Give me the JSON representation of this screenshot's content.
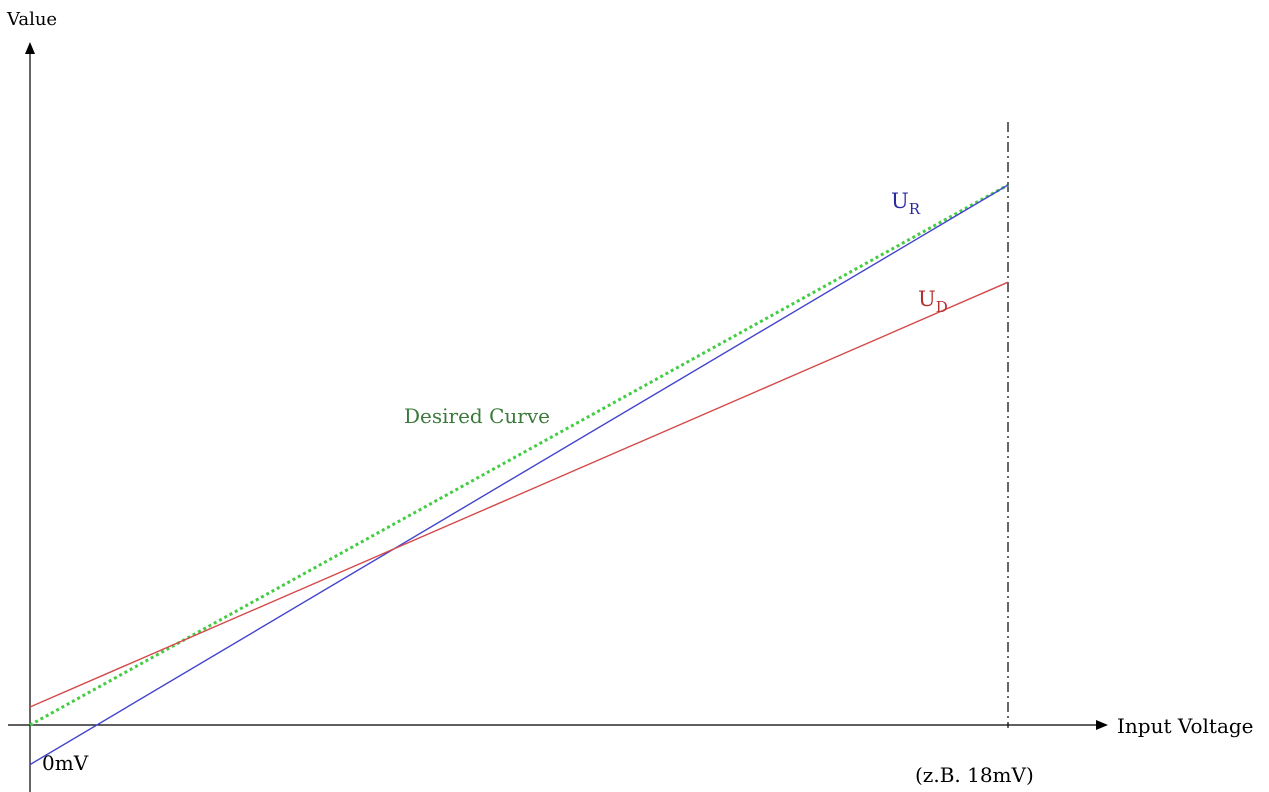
{
  "chart_data": {
    "type": "line",
    "xlabel": "Input Voltage",
    "ylabel": "Value",
    "x_origin_label": "0mV",
    "x_end_label": "(z.B. 18mV)",
    "x_unit": "mV",
    "xlim": [
      0,
      18
    ],
    "ylim": [
      -1,
      16
    ],
    "grid": false,
    "legend": "none",
    "reference_line": {
      "x": 18,
      "style": "dash-dot",
      "color": "#000000"
    },
    "series": [
      {
        "name": "Desired Curve",
        "label_parts": [
          "Desired Curve",
          ""
        ],
        "color": "#44cc44",
        "label_color": "#3b7a3b",
        "style": "dotted",
        "x": [
          0,
          18
        ],
        "y": [
          0,
          15
        ]
      },
      {
        "name": "U_R",
        "label_parts": [
          "U",
          "R"
        ],
        "color": "#4444cc",
        "label_color": "#2a2aa0",
        "style": "solid",
        "x": [
          0,
          18
        ],
        "y": [
          -1.1,
          15
        ]
      },
      {
        "name": "U_D",
        "label_parts": [
          "U",
          "D"
        ],
        "color": "#d44a4a",
        "label_color": "#b03030",
        "style": "solid",
        "x": [
          0,
          18
        ],
        "y": [
          0.5,
          12.3
        ]
      }
    ]
  }
}
